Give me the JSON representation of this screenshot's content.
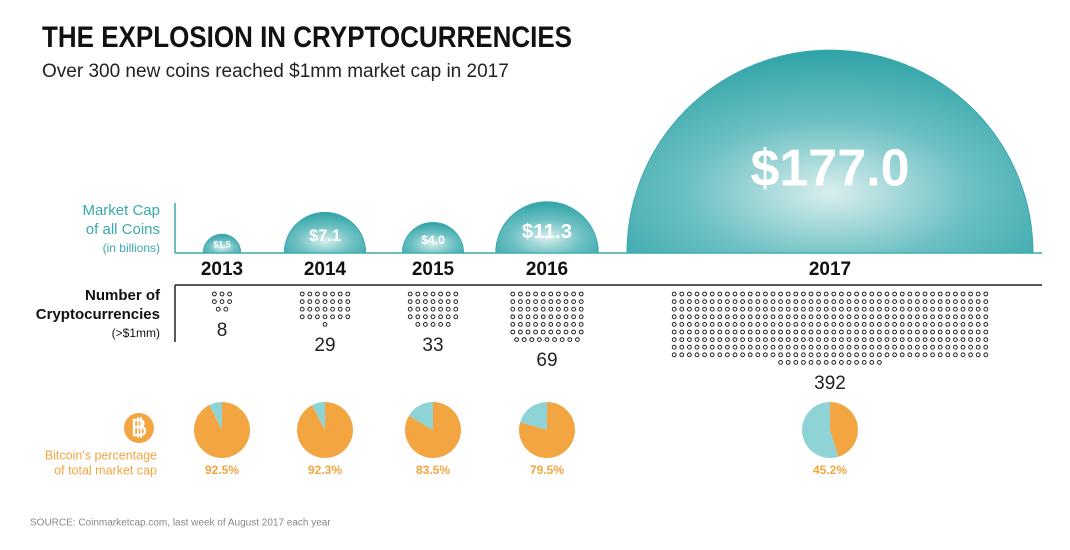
{
  "title": "THE EXPLOSION IN CRYPTOCURRENCIES",
  "subtitle": "Over 300 new coins reached $1mm market cap in 2017",
  "source": "SOURCE: Coinmarketcap.com, last week of August 2017 each year",
  "chart_data": [
    {
      "type": "semicircle",
      "label_lines": [
        "Market Cap",
        "of all Coins"
      ],
      "unit_label": "(in billions)",
      "categories": [
        "2013",
        "2014",
        "2015",
        "2016",
        "2017"
      ],
      "values": [
        1.5,
        7.1,
        4.0,
        11.3,
        177.0
      ],
      "value_labels": [
        "$1.5",
        "$7.1",
        "$4.0",
        "$11.3",
        "$177.0"
      ],
      "color": "#3aa9ad"
    },
    {
      "type": "dots",
      "label_lines": [
        "Number of",
        "Cryptocurrencies"
      ],
      "unit_label": "(>$1mm)",
      "values": [
        8,
        29,
        33,
        69,
        392
      ],
      "color": "#222222"
    },
    {
      "type": "pie",
      "label_lines": [
        "Bitcoin's percentage",
        "of total market cap"
      ],
      "values": [
        92.5,
        92.3,
        83.5,
        79.5,
        45.2
      ],
      "value_labels": [
        "92.5%",
        "92.3%",
        "83.5%",
        "79.5%",
        "45.2%"
      ],
      "color": "#f2a541",
      "rest_color": "#8ed3d6"
    }
  ]
}
